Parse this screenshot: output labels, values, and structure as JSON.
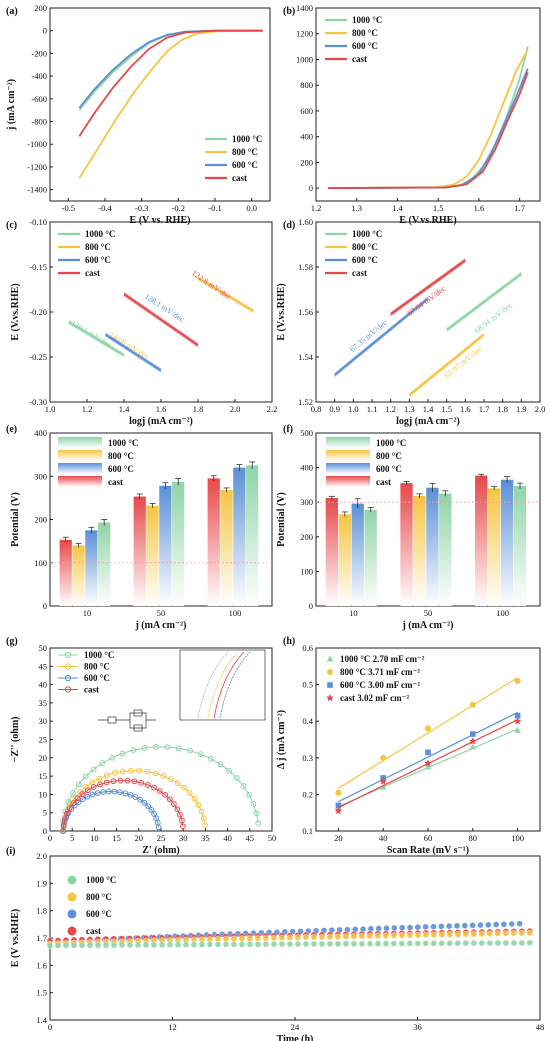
{
  "colors": {
    "1000": "#8ed4a6",
    "800": "#f5c542",
    "600": "#5b8fd6",
    "cast": "#e8474a"
  },
  "legend": [
    "1000 °C",
    "800 °C",
    "600 °C",
    "cast"
  ],
  "chart_data": [
    {
      "id": "a",
      "type": "line",
      "panel_label": "(a)",
      "xlabel": "E (V vs. RHE)",
      "ylabel": "j (mA cm⁻²)",
      "xlim": [
        -0.55,
        0.05
      ],
      "ylim": [
        -1500,
        200
      ],
      "xticks": [
        "-0.5",
        "-0.4",
        "-0.3",
        "-0.2",
        "-0.1",
        "0.0"
      ],
      "yticks": [
        "200",
        "0",
        "-200",
        "-400",
        "-600",
        "-800",
        "-1000",
        "-1200",
        "-1400"
      ],
      "series": [
        {
          "name": "1000 °C",
          "x": [
            -0.47,
            -0.43,
            -0.38,
            -0.33,
            -0.28,
            -0.23,
            -0.18,
            -0.1,
            0.03
          ],
          "y": [
            -700,
            -540,
            -370,
            -230,
            -110,
            -40,
            -10,
            0,
            0
          ]
        },
        {
          "name": "800 °C",
          "x": [
            -0.47,
            -0.42,
            -0.37,
            -0.32,
            -0.27,
            -0.23,
            -0.19,
            -0.15,
            -0.1,
            0.03
          ],
          "y": [
            -1300,
            -1040,
            -780,
            -540,
            -330,
            -180,
            -80,
            -25,
            -5,
            0
          ]
        },
        {
          "name": "600 °C",
          "x": [
            -0.47,
            -0.43,
            -0.38,
            -0.33,
            -0.28,
            -0.23,
            -0.18,
            -0.1,
            0.03
          ],
          "y": [
            -680,
            -520,
            -350,
            -210,
            -100,
            -35,
            -8,
            0,
            0
          ]
        },
        {
          "name": "cast",
          "x": [
            -0.47,
            -0.43,
            -0.38,
            -0.33,
            -0.28,
            -0.23,
            -0.18,
            -0.1,
            0.03
          ],
          "y": [
            -930,
            -730,
            -510,
            -320,
            -160,
            -60,
            -15,
            0,
            0
          ]
        }
      ]
    },
    {
      "id": "b",
      "type": "line",
      "panel_label": "(b)",
      "xlabel": "E (V.vs.RHE)",
      "ylabel": "",
      "xlim": [
        1.2,
        1.75
      ],
      "ylim": [
        -100,
        1400
      ],
      "xticks": [
        "1.2",
        "1.3",
        "1.4",
        "1.5",
        "1.6",
        "1.7"
      ],
      "yticks": [
        "0",
        "200",
        "400",
        "600",
        "800",
        "1000",
        "1200",
        "1400"
      ],
      "series": [
        {
          "name": "1000 °C",
          "x": [
            1.23,
            1.5,
            1.55,
            1.58,
            1.61,
            1.64,
            1.67,
            1.7,
            1.72
          ],
          "y": [
            0,
            5,
            20,
            60,
            170,
            340,
            570,
            850,
            1100
          ]
        },
        {
          "name": "800 °C",
          "x": [
            1.23,
            1.5,
            1.54,
            1.57,
            1.6,
            1.63,
            1.66,
            1.69,
            1.72
          ],
          "y": [
            0,
            8,
            30,
            90,
            220,
            420,
            660,
            900,
            1080
          ]
        },
        {
          "name": "600 °C",
          "x": [
            1.23,
            1.52,
            1.56,
            1.6,
            1.63,
            1.66,
            1.69,
            1.72
          ],
          "y": [
            0,
            5,
            25,
            110,
            270,
            480,
            700,
            930
          ]
        },
        {
          "name": "cast",
          "x": [
            1.23,
            1.52,
            1.57,
            1.61,
            1.64,
            1.67,
            1.7,
            1.72
          ],
          "y": [
            0,
            5,
            30,
            130,
            300,
            520,
            730,
            900
          ]
        }
      ]
    },
    {
      "id": "c",
      "type": "line",
      "panel_label": "(c)",
      "xlabel": "logj (mA cm⁻²)",
      "ylabel": "E (V.vs.RHE)",
      "xlim": [
        1.0,
        2.2
      ],
      "ylim": [
        -0.3,
        -0.1
      ],
      "xticks": [
        "1.0",
        "1.2",
        "1.4",
        "1.6",
        "1.8",
        "2.0",
        "2.2"
      ],
      "yticks": [
        "-0.10",
        "-0.15",
        "-0.20",
        "-0.25",
        "-0.30"
      ],
      "series": [
        {
          "name": "1000 °C",
          "x": [
            1.1,
            1.4
          ],
          "y": [
            -0.211,
            -0.248
          ]
        },
        {
          "name": "800 °C",
          "x": [
            1.8,
            2.1
          ],
          "y": [
            -0.162,
            -0.199
          ]
        },
        {
          "name": "600 °C",
          "x": [
            1.3,
            1.6
          ],
          "y": [
            -0.225,
            -0.265
          ]
        },
        {
          "name": "cast",
          "x": [
            1.4,
            1.8
          ],
          "y": [
            -0.18,
            -0.237
          ]
        }
      ],
      "annotations": [
        "130.1 mV/dec",
        "140.6 mV/dec",
        "138.1 mV/dec",
        "122.8 mV/dec"
      ]
    },
    {
      "id": "d",
      "type": "line",
      "panel_label": "(d)",
      "xlabel": "logj (mA cm⁻²)",
      "ylabel": "E (V.vs.RHE)",
      "xlim": [
        0.8,
        2.0
      ],
      "ylim": [
        1.52,
        1.6
      ],
      "xticks": [
        "0.8",
        "0.9",
        "1.0",
        "1.1",
        "1.2",
        "1.3",
        "1.4",
        "1.5",
        "1.6",
        "1.7",
        "1.8",
        "1.9",
        "2.0"
      ],
      "yticks": [
        "1.52",
        "1.54",
        "1.56",
        "1.58",
        "1.60"
      ],
      "series": [
        {
          "name": "1000 °C",
          "x": [
            1.5,
            1.9
          ],
          "y": [
            1.552,
            1.577
          ]
        },
        {
          "name": "800 °C",
          "x": [
            1.3,
            1.7
          ],
          "y": [
            1.523,
            1.55
          ]
        },
        {
          "name": "600 °C",
          "x": [
            0.9,
            1.4
          ],
          "y": [
            1.532,
            1.566
          ]
        },
        {
          "name": "cast",
          "x": [
            1.2,
            1.6
          ],
          "y": [
            1.559,
            1.583
          ]
        }
      ],
      "annotations": [
        "68.94 mV/dec",
        "61.97 mV/dec",
        "67.35 mV/dec",
        "67.04 mV/dec"
      ]
    },
    {
      "id": "e",
      "type": "bar",
      "panel_label": "(e)",
      "xlabel": "j (mA cm⁻²)",
      "ylabel": "Potential (V)",
      "categories": [
        "10",
        "50",
        "100"
      ],
      "ylim": [
        0,
        400
      ],
      "yticks": [
        "0",
        "100",
        "200",
        "300",
        "400"
      ],
      "series": [
        {
          "name": "cast",
          "values": [
            153,
            253,
            295
          ],
          "errors": [
            6,
            6,
            6
          ]
        },
        {
          "name": "800 °C",
          "values": [
            140,
            232,
            268
          ],
          "errors": [
            5,
            5,
            5
          ]
        },
        {
          "name": "600 °C",
          "values": [
            175,
            278,
            320
          ],
          "errors": [
            7,
            7,
            7
          ]
        },
        {
          "name": "1000 °C",
          "values": [
            193,
            287,
            325
          ],
          "errors": [
            7,
            8,
            8
          ]
        }
      ],
      "reference_line": 100
    },
    {
      "id": "f",
      "type": "bar",
      "panel_label": "(f)",
      "xlabel": "j (mA cm⁻²)",
      "ylabel": "Potential (V)",
      "categories": [
        "10",
        "50",
        "100"
      ],
      "ylim": [
        0,
        500
      ],
      "yticks": [
        "0",
        "100",
        "200",
        "300",
        "400",
        "500"
      ],
      "series": [
        {
          "name": "cast",
          "values": [
            312,
            355,
            377
          ],
          "errors": [
            5,
            5,
            4
          ]
        },
        {
          "name": "800 °C",
          "values": [
            265,
            318,
            340
          ],
          "errors": [
            7,
            6,
            5
          ]
        },
        {
          "name": "600 °C",
          "values": [
            296,
            342,
            365
          ],
          "errors": [
            14,
            12,
            9
          ]
        },
        {
          "name": "1000 °C",
          "values": [
            278,
            325,
            347
          ],
          "errors": [
            7,
            8,
            8
          ]
        }
      ],
      "reference_line": 300
    },
    {
      "id": "g",
      "type": "scatter",
      "panel_label": "(g)",
      "xlabel": "Z' (ohm)",
      "ylabel": "−Z'' (ohm)",
      "xlim": [
        0,
        50
      ],
      "ylim": [
        0,
        50
      ],
      "xticks": [
        "0",
        "5",
        "10",
        "15",
        "20",
        "25",
        "30",
        "35",
        "40",
        "45",
        "50"
      ],
      "yticks": [
        "0",
        "5",
        "10",
        "15",
        "20",
        "25",
        "30",
        "35",
        "40",
        "45",
        "50"
      ],
      "semicircles": [
        {
          "name": "1000 °C",
          "r0": 2.8,
          "r1": 47,
          "peak": 23
        },
        {
          "name": "800 °C",
          "r0": 3.0,
          "r1": 35,
          "peak": 16.5
        },
        {
          "name": "600 °C",
          "r0": 3.0,
          "r1": 24.5,
          "peak": 10.8
        },
        {
          "name": "cast",
          "r0": 3.0,
          "r1": 30,
          "peak": 13.8
        }
      ]
    },
    {
      "id": "h",
      "type": "scatter",
      "panel_label": "(h)",
      "xlabel": "Scan Rate (mV s⁻¹)",
      "ylabel": "Δ j (mA cm⁻²)",
      "xlim": [
        10,
        110
      ],
      "ylim": [
        0.1,
        0.6
      ],
      "xticks": [
        "20",
        "40",
        "60",
        "80",
        "100"
      ],
      "yticks": [
        "0.1",
        "0.2",
        "0.3",
        "0.4",
        "0.5",
        "0.6"
      ],
      "x": [
        20,
        40,
        60,
        80,
        100
      ],
      "series": [
        {
          "name": "1000 °C",
          "label": "1000 °C 2.70 mF cm⁻²",
          "marker": "triangle",
          "values": [
            0.165,
            0.22,
            0.275,
            0.33,
            0.375
          ]
        },
        {
          "name": "800 °C",
          "label": "800 °C 3.71 mF cm⁻²",
          "marker": "circle",
          "values": [
            0.205,
            0.3,
            0.38,
            0.445,
            0.51
          ]
        },
        {
          "name": "600 °C",
          "label": "600 °C 3.00 mF cm⁻²",
          "marker": "square",
          "values": [
            0.17,
            0.245,
            0.315,
            0.365,
            0.415
          ]
        },
        {
          "name": "cast",
          "label": "cast 3.02 mF cm⁻²",
          "marker": "star",
          "values": [
            0.155,
            0.235,
            0.285,
            0.345,
            0.4
          ]
        }
      ]
    },
    {
      "id": "i",
      "type": "scatter",
      "panel_label": "(i)",
      "xlabel": "Time (h)",
      "ylabel": "E (V vs.RHE)",
      "xlim": [
        0,
        48
      ],
      "ylim": [
        1.4,
        2.0
      ],
      "xticks": [
        "0",
        "12",
        "24",
        "36",
        "48"
      ],
      "yticks": [
        "1.4",
        "1.5",
        "1.6",
        "1.7",
        "1.8",
        "1.9",
        "2.0"
      ],
      "series": [
        {
          "name": "1000 °C",
          "start": 1.672,
          "end": 1.682,
          "t_end": 47
        },
        {
          "name": "800 °C",
          "start": 1.678,
          "end": 1.718,
          "t_end": 47
        },
        {
          "name": "600 °C",
          "start": 1.682,
          "end": 1.752,
          "t_end": 46
        },
        {
          "name": "cast",
          "start": 1.69,
          "end": 1.725,
          "t_end": 47
        }
      ]
    }
  ]
}
